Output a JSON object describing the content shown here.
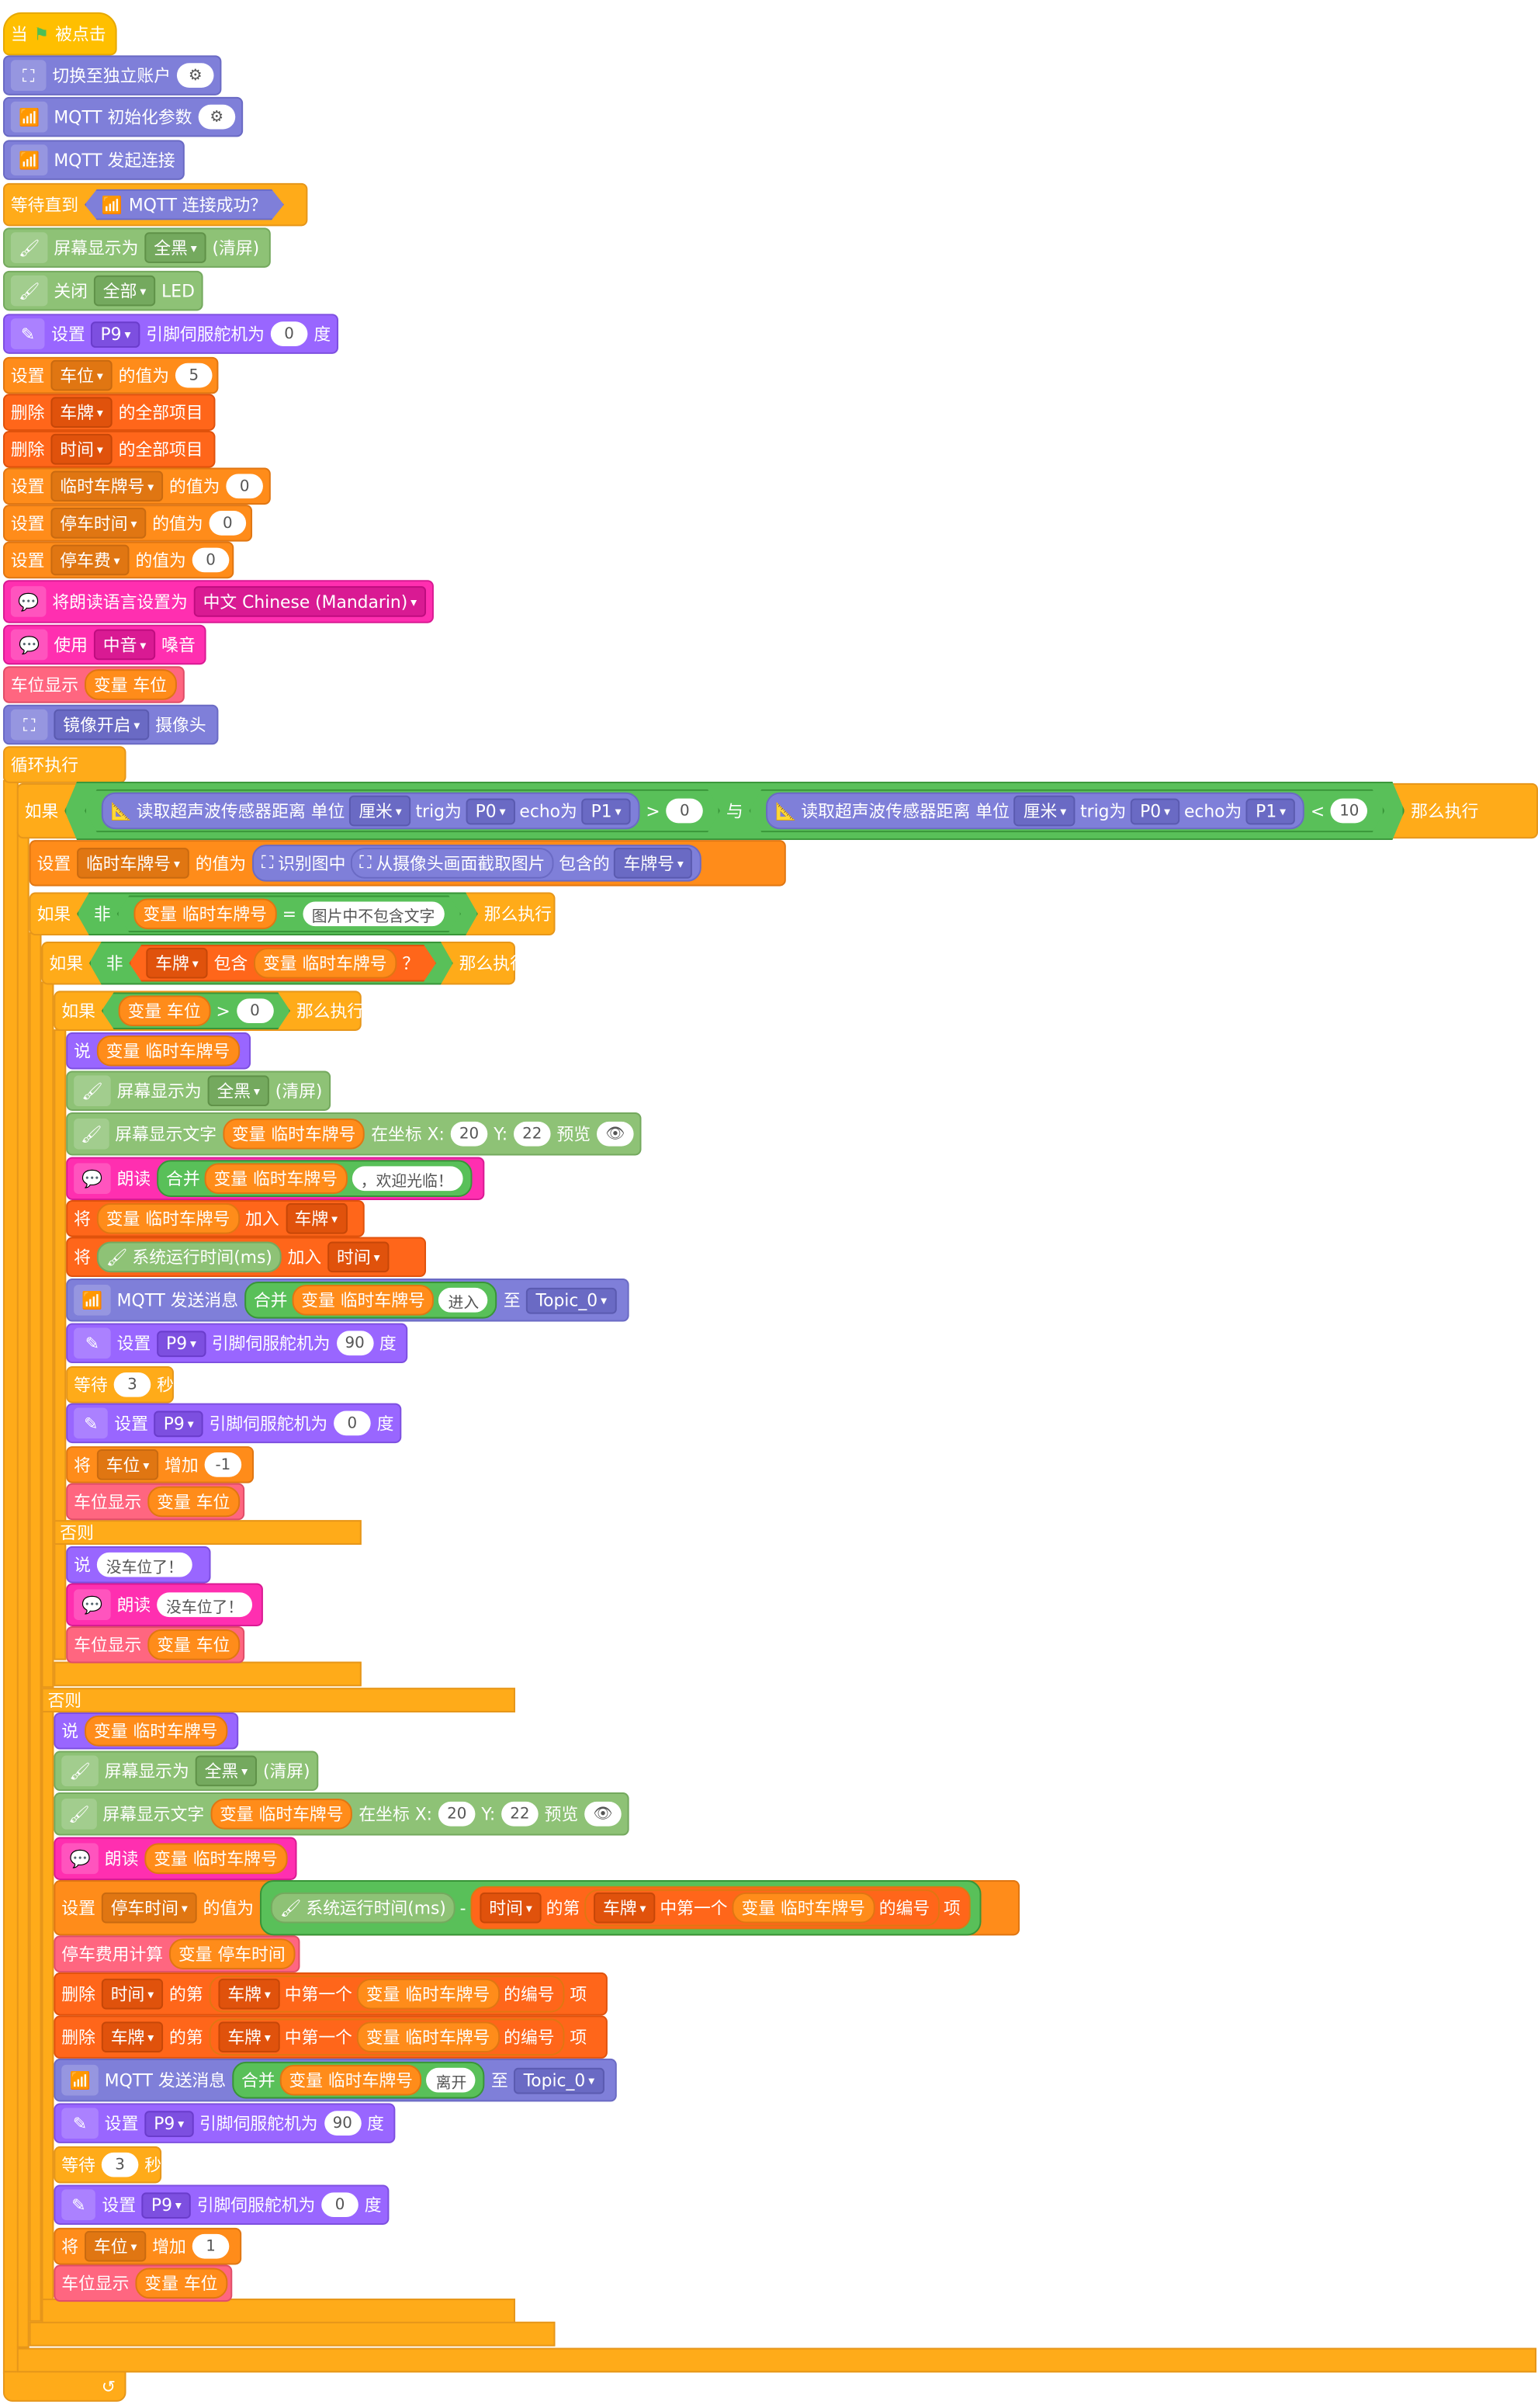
{
  "blocks": {
    "when": "当",
    "clicked": "被点击",
    "switch_account": "切换至独立账户",
    "mqtt_init": "MQTT 初始化参数",
    "mqtt_connect": "MQTT 发起连接",
    "wait_until": "等待直到",
    "mqtt_connected": "MQTT 连接成功？",
    "screen_show": "屏幕显示为",
    "all_black": "全黑",
    "clear": "(清屏)",
    "close": "关闭",
    "all": "全部",
    "led": "LED",
    "set": "设置",
    "p9": "P9",
    "servo_pin": "引脚伺服舵机为",
    "degree": "度",
    "zero": "0",
    "parking_spaces": "车位",
    "value_is": "的值为",
    "five": "5",
    "delete": "删除",
    "plates": "车牌",
    "times": "时间",
    "all_items": "的全部项目",
    "temp_plate": "临时车牌号",
    "parking_time": "停车时间",
    "parking_fee": "停车费",
    "set_language": "将朗读语言设置为",
    "chinese": "中文 Chinese (Mandarin)",
    "use": "使用",
    "mid": "中音",
    "voice": "嗓音",
    "space_display": "车位显示",
    "var_space": "变量 车位",
    "mirror_on": "镜像开启",
    "camera": "摄像头",
    "forever": "循环执行",
    "if": "如果",
    "read_ultra": "读取超声波传感器距离 单位",
    "cm": "厘米",
    "trig": "trig为",
    "p0": "P0",
    "echo": "echo为",
    "p1": "P1",
    "gt": ">",
    "lt": "<",
    "ten": "10",
    "and": "与",
    "then": "那么执行",
    "recognize": "识别图中",
    "capture": "从摄像头画面截取图片",
    "contains_of": "包含的",
    "plate_number": "车牌号",
    "not": "非",
    "var_temp_plate": "变量 临时车牌号",
    "eq": "=",
    "no_text": "图片中不包含文字",
    "contains": "包含",
    "question": "？",
    "say": "说",
    "display_text": "屏幕显示文字",
    "at_coord": "在坐标 X:",
    "x20": "20",
    "y_label": "Y:",
    "y22": "22",
    "preview": "预览",
    "speak": "朗读",
    "join": "合并",
    "welcome": "，欢迎光临！",
    "put": "将",
    "add_to": "加入",
    "sys_time": "系统运行时间(ms)",
    "mqtt_send": "MQTT 发送消息",
    "enter": "进入",
    "to": "至",
    "topic0": "Topic_0",
    "ninety": "90",
    "wait": "等待",
    "three": "3",
    "seconds": "秒",
    "increase": "增加",
    "minus_one": "-1",
    "else": "否则",
    "no_space": "没车位了！",
    "minus": "-",
    "of_item": "的第",
    "first_in": "中第一个",
    "index": "的编号",
    "item": "项",
    "fee_calc": "停车费用计算",
    "var_parking_time": "变量 停车时间",
    "leave": "离开",
    "one": "1",
    "mqtt_tag": "MQTT"
  }
}
